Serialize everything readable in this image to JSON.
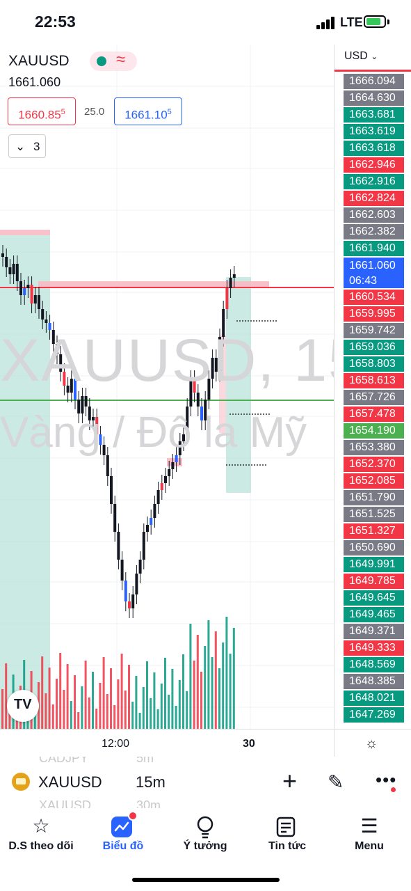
{
  "status_bar": {
    "time": "22:53",
    "network": "LTE"
  },
  "legend": {
    "symbol": "XAUUSD",
    "last_price": "1661.060",
    "bid_main": "1660.85",
    "bid_sup": "5",
    "spread": "25.0",
    "ask_main": "1661.10",
    "ask_sup": "5",
    "indicators_count": "3"
  },
  "watermark": {
    "line1": "XAUUSD, 15",
    "line2": "Vàng / Đô la Mỹ"
  },
  "price_axis": {
    "currency": "USD",
    "labels": [
      {
        "text": "1666.094",
        "color": "#787b86"
      },
      {
        "text": "1664.630",
        "color": "#787b86"
      },
      {
        "text": "1663.681",
        "color": "#089981"
      },
      {
        "text": "1663.619",
        "color": "#089981"
      },
      {
        "text": "1663.618",
        "color": "#089981"
      },
      {
        "text": "1662.946",
        "color": "#f23645"
      },
      {
        "text": "1662.916",
        "color": "#089981"
      },
      {
        "text": "1662.824",
        "color": "#f23645"
      },
      {
        "text": "1662.603",
        "color": "#787b86"
      },
      {
        "text": "1662.382",
        "color": "#787b86"
      },
      {
        "text": "1661.940",
        "color": "#089981"
      },
      {
        "text": "1661.060",
        "sub": "06:43",
        "color": "#2962ff"
      },
      {
        "text": "1660.534",
        "color": "#f23645"
      },
      {
        "text": "1659.995",
        "color": "#f23645"
      },
      {
        "text": "1659.742",
        "color": "#787b86"
      },
      {
        "text": "1659.036",
        "color": "#089981"
      },
      {
        "text": "1658.803",
        "color": "#089981"
      },
      {
        "text": "1658.613",
        "color": "#f23645"
      },
      {
        "text": "1657.726",
        "color": "#787b86"
      },
      {
        "text": "1657.478",
        "color": "#f23645"
      },
      {
        "text": "1654.190",
        "color": "#4caf50"
      },
      {
        "text": "1653.380",
        "color": "#787b86"
      },
      {
        "text": "1652.370",
        "color": "#f23645"
      },
      {
        "text": "1652.085",
        "color": "#f23645"
      },
      {
        "text": "1651.790",
        "color": "#787b86"
      },
      {
        "text": "1651.525",
        "color": "#787b86"
      },
      {
        "text": "1651.327",
        "color": "#f23645"
      },
      {
        "text": "1650.690",
        "color": "#787b86"
      },
      {
        "text": "1649.991",
        "color": "#089981"
      },
      {
        "text": "1649.785",
        "color": "#f23645"
      },
      {
        "text": "1649.645",
        "color": "#089981"
      },
      {
        "text": "1649.465",
        "color": "#089981"
      },
      {
        "text": "1649.371",
        "color": "#787b86"
      },
      {
        "text": "1649.333",
        "color": "#f23645"
      },
      {
        "text": "1648.569",
        "color": "#089981"
      },
      {
        "text": "1648.385",
        "color": "#787b86"
      },
      {
        "text": "1648.021",
        "color": "#089981"
      },
      {
        "text": "1647.269",
        "color": "#089981"
      }
    ]
  },
  "time_axis": {
    "label_1": "12:00",
    "label_2": "30"
  },
  "toolbar": {
    "symbol": "XAUUSD",
    "interval": "15m",
    "ghost_above_symbol": "CADJPY",
    "ghost_above_interval": "5m",
    "ghost_below_symbol": "XAUUSD",
    "ghost_below_interval": "30m"
  },
  "nav": {
    "watchlist": "D.S theo dõi",
    "chart": "Biểu đồ",
    "ideas": "Ý tưởng",
    "news": "Tin tức",
    "menu": "Menu"
  },
  "colors": {
    "up": "#089981",
    "down": "#f23645",
    "accent": "#2962ff"
  }
}
